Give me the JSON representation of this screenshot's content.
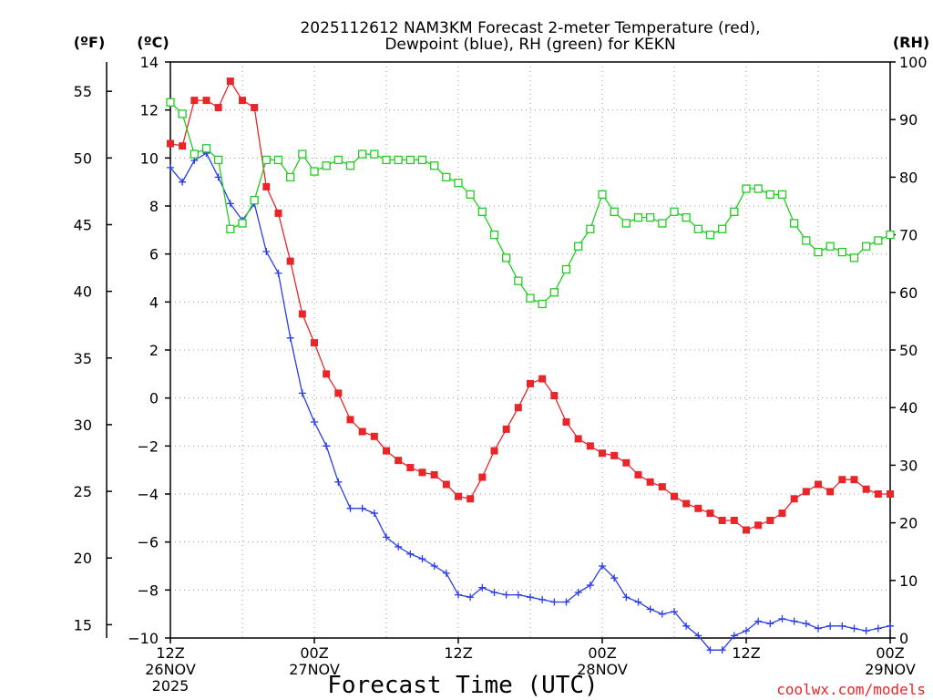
{
  "chart_data": {
    "type": "line",
    "title_lines": [
      "2025112612 NAM3KM Forecast 2-meter Temperature (red),",
      "Dewpoint (blue), RH (green) for KEKN"
    ],
    "xlabel": "Forecast Time (UTC)",
    "credit": "coolwx.com/models",
    "x_hours": [
      0,
      1,
      2,
      3,
      4,
      5,
      6,
      7,
      8,
      9,
      10,
      11,
      12,
      13,
      14,
      15,
      16,
      17,
      18,
      19,
      20,
      21,
      22,
      23,
      24,
      25,
      26,
      27,
      28,
      29,
      30,
      31,
      32,
      33,
      34,
      35,
      36,
      37,
      38,
      39,
      40,
      41,
      42,
      43,
      44,
      45,
      46,
      47,
      48,
      49,
      50,
      51,
      52,
      53,
      54,
      55,
      56,
      57,
      58,
      59,
      60
    ],
    "xlim": [
      0,
      60
    ],
    "x_ticks": [
      {
        "hour": 0,
        "lines": [
          "12Z",
          "26NOV",
          "2025"
        ]
      },
      {
        "hour": 12,
        "lines": [
          "00Z",
          "27NOV"
        ]
      },
      {
        "hour": 24,
        "lines": [
          "12Z"
        ]
      },
      {
        "hour": 36,
        "lines": [
          "00Z",
          "28NOV"
        ]
      },
      {
        "hour": 48,
        "lines": [
          "12Z"
        ]
      },
      {
        "hour": 60,
        "lines": [
          "00Z",
          "29NOV"
        ]
      }
    ],
    "celsius_axis": {
      "label": "(ºC)",
      "range": [
        -10,
        14
      ],
      "ticks": [
        14,
        12,
        10,
        8,
        6,
        4,
        2,
        0,
        -2,
        -4,
        -6,
        -8,
        -10
      ]
    },
    "fahrenheit_axis": {
      "label": "(ºF)",
      "ticks": [
        55,
        50,
        45,
        40,
        35,
        30,
        25,
        20,
        15
      ]
    },
    "rh_axis": {
      "label": "(RH)",
      "range": [
        0,
        100
      ],
      "ticks": [
        100,
        90,
        80,
        70,
        60,
        50,
        40,
        30,
        20,
        10,
        0
      ]
    },
    "series": [
      {
        "name": "Temperature",
        "unit": "C",
        "color": "#e8262a",
        "marker": "filled-square",
        "values": [
          10.6,
          10.5,
          12.4,
          12.4,
          12.1,
          13.2,
          12.4,
          12.1,
          8.8,
          7.7,
          5.7,
          3.5,
          2.3,
          1.0,
          0.2,
          -0.9,
          -1.4,
          -1.6,
          -2.2,
          -2.6,
          -2.9,
          -3.1,
          -3.2,
          -3.6,
          -4.1,
          -4.2,
          -3.3,
          -2.2,
          -1.3,
          -0.4,
          0.6,
          0.8,
          0.1,
          -1.0,
          -1.7,
          -2.0,
          -2.3,
          -2.4,
          -2.7,
          -3.2,
          -3.5,
          -3.7,
          -4.1,
          -4.4,
          -4.6,
          -4.8,
          -5.1,
          -5.1,
          -5.5,
          -5.3,
          -5.1,
          -4.8,
          -4.2,
          -3.9,
          -3.6,
          -3.9,
          -3.4,
          -3.4,
          -3.8,
          -4.0,
          -4.0
        ]
      },
      {
        "name": "Dewpoint",
        "unit": "C",
        "color": "#2a3ee8",
        "marker": "plus",
        "values": [
          9.6,
          9.0,
          9.9,
          10.2,
          9.2,
          8.1,
          7.4,
          8.1,
          6.1,
          5.2,
          2.5,
          0.2,
          -1.0,
          -2.0,
          -3.5,
          -4.6,
          -4.6,
          -4.8,
          -5.8,
          -6.2,
          -6.5,
          -6.7,
          -7.0,
          -7.3,
          -8.2,
          -8.3,
          -7.9,
          -8.1,
          -8.2,
          -8.2,
          -8.3,
          -8.4,
          -8.5,
          -8.5,
          -8.1,
          -7.8,
          -7.0,
          -7.5,
          -8.3,
          -8.5,
          -8.8,
          -9.0,
          -8.9,
          -9.5,
          -9.9,
          -10.5,
          -10.5,
          -9.9,
          -9.7,
          -9.3,
          -9.4,
          -9.2,
          -9.3,
          -9.4,
          -9.6,
          -9.5,
          -9.5,
          -9.6,
          -9.7,
          -9.6,
          -9.5
        ]
      },
      {
        "name": "RH",
        "unit": "%",
        "color": "#22cc22",
        "marker": "open-square",
        "values": [
          93,
          91,
          84,
          85,
          83,
          71,
          72,
          76,
          83,
          83,
          80,
          84,
          81,
          82,
          83,
          82,
          84,
          84,
          83,
          83,
          83,
          83,
          82,
          80,
          79,
          77,
          74,
          70,
          66,
          62,
          59,
          58,
          60,
          64,
          68,
          71,
          77,
          74,
          72,
          73,
          73,
          72,
          74,
          73,
          71,
          70,
          71,
          74,
          78,
          78,
          77,
          77,
          72,
          69,
          67,
          68,
          67,
          66,
          68,
          69,
          70
        ]
      }
    ]
  }
}
